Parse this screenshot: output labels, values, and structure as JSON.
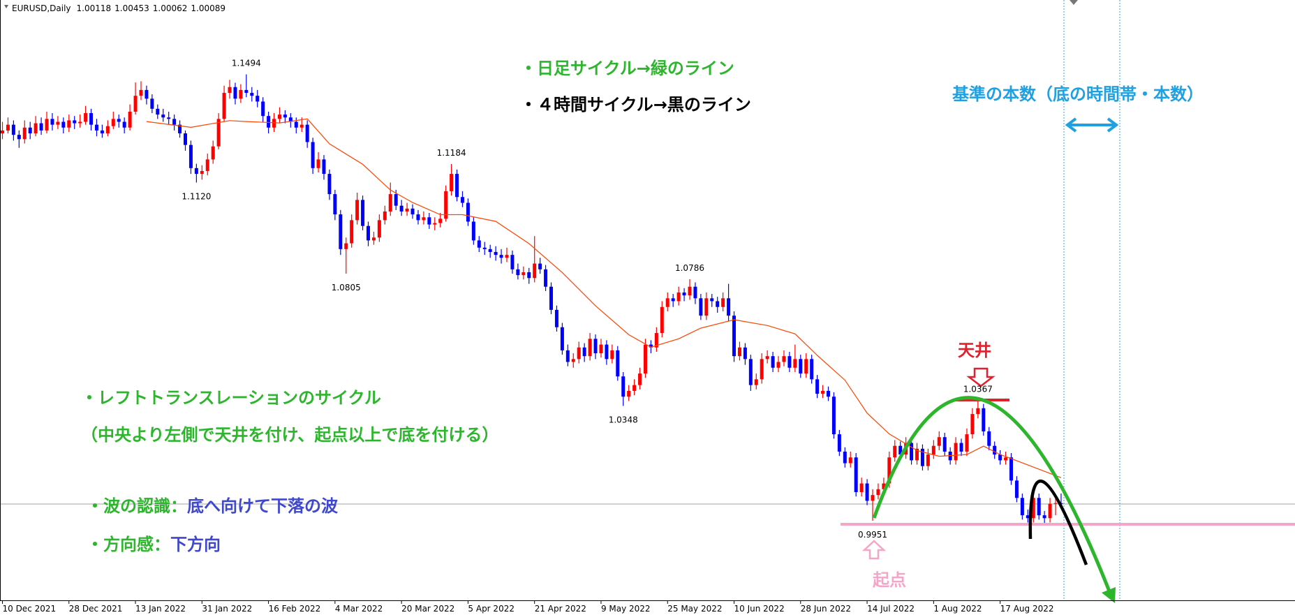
{
  "header": {
    "symbol": "EURUSD,Daily",
    "ohlc": [
      1.00118,
      1.00453,
      1.00062,
      1.00089
    ]
  },
  "notes": {
    "daily_cycle": "・日足サイクル→緑のライン",
    "h4_cycle": "・４時間サイクル→黒のライン",
    "reference": "基準の本数（底の時間帯・本数）",
    "left_translation": "・レフトトランスレーションのサイクル",
    "left_translation_note": "（中央より左側で天井を付け、起点以上で底を付ける）",
    "wave_label": "・波の認識：",
    "wave_value": "底へ向けて下落の波",
    "direction_label": "・方向感：",
    "direction_value": "下方向",
    "top": "天井",
    "origin": "起点"
  },
  "chart_data": {
    "type": "candlestick",
    "up_color": "#ff0000",
    "down_color": "#0000ff",
    "xlim": [
      -0.44,
      233.2
    ],
    "ylim": [
      0.9676,
      1.1751
    ],
    "xticks": [
      {
        "value": 0,
        "label": "10 Dec 2021"
      },
      {
        "value": 12,
        "label": "28 Dec 2021"
      },
      {
        "value": 24,
        "label": "13 Jan 2022"
      },
      {
        "value": 36,
        "label": "31 Jan 2022"
      },
      {
        "value": 48,
        "label": "16 Feb 2022"
      },
      {
        "value": 60,
        "label": "4 Mar 2022"
      },
      {
        "value": 72,
        "label": "20 Mar 2022"
      },
      {
        "value": 84,
        "label": "5 Apr 2022"
      },
      {
        "value": 96,
        "label": "21 Apr 2022"
      },
      {
        "value": 108,
        "label": "9 May 2022"
      },
      {
        "value": 120,
        "label": "25 May 2022"
      },
      {
        "value": 132,
        "label": "10 Jun 2022"
      },
      {
        "value": 144,
        "label": "28 Jun 2022"
      },
      {
        "value": 156,
        "label": "14 Jul 2022"
      },
      {
        "value": 168,
        "label": "1 Aug 2022"
      },
      {
        "value": 180,
        "label": "17 Aug 2022"
      }
    ],
    "ohlc": [
      [
        1.129,
        1.133,
        1.127,
        1.13
      ],
      [
        1.13,
        1.1345,
        1.129,
        1.132
      ],
      [
        1.132,
        1.1335,
        1.1265,
        1.1285
      ],
      [
        1.1285,
        1.13,
        1.124,
        1.127
      ],
      [
        1.127,
        1.1335,
        1.1255,
        1.131
      ],
      [
        1.131,
        1.133,
        1.127,
        1.129
      ],
      [
        1.129,
        1.135,
        1.128,
        1.1325
      ],
      [
        1.1325,
        1.1345,
        1.1285,
        1.13
      ],
      [
        1.13,
        1.1365,
        1.129,
        1.134
      ],
      [
        1.134,
        1.136,
        1.13,
        1.132
      ],
      [
        1.132,
        1.135,
        1.1305,
        1.133
      ],
      [
        1.133,
        1.1345,
        1.129,
        1.131
      ],
      [
        1.131,
        1.1355,
        1.1295,
        1.1335
      ],
      [
        1.1335,
        1.135,
        1.1305,
        1.1325
      ],
      [
        1.1325,
        1.1355,
        1.131,
        1.133
      ],
      [
        1.133,
        1.1385,
        1.132,
        1.136
      ],
      [
        1.136,
        1.1375,
        1.13,
        1.132
      ],
      [
        1.132,
        1.134,
        1.128,
        1.13
      ],
      [
        1.13,
        1.132,
        1.1275,
        1.129
      ],
      [
        1.129,
        1.1335,
        1.128,
        1.1315
      ],
      [
        1.1315,
        1.1365,
        1.1305,
        1.134
      ],
      [
        1.134,
        1.1355,
        1.131,
        1.133
      ],
      [
        1.133,
        1.1345,
        1.129,
        1.131
      ],
      [
        1.131,
        1.139,
        1.13,
        1.1365
      ],
      [
        1.1365,
        1.1466,
        1.1355,
        1.142
      ],
      [
        1.142,
        1.147,
        1.1405,
        1.144
      ],
      [
        1.144,
        1.1455,
        1.139,
        1.141
      ],
      [
        1.141,
        1.1425,
        1.136,
        1.1375
      ],
      [
        1.1375,
        1.139,
        1.134,
        1.1355
      ],
      [
        1.1355,
        1.1375,
        1.133,
        1.1345
      ],
      [
        1.1345,
        1.1365,
        1.132,
        1.134
      ],
      [
        1.134,
        1.1355,
        1.13,
        1.132
      ],
      [
        1.132,
        1.1335,
        1.1275,
        1.129
      ],
      [
        1.129,
        1.13,
        1.123,
        1.125
      ],
      [
        1.125,
        1.1265,
        1.115,
        1.117
      ],
      [
        1.117,
        1.1185,
        1.112,
        1.115
      ],
      [
        1.115,
        1.118,
        1.113,
        1.116
      ],
      [
        1.116,
        1.122,
        1.1145,
        1.12
      ],
      [
        1.12,
        1.1265,
        1.1185,
        1.1245
      ],
      [
        1.1245,
        1.136,
        1.1235,
        1.134
      ],
      [
        1.134,
        1.1455,
        1.133,
        1.143
      ],
      [
        1.143,
        1.1475,
        1.141,
        1.145
      ],
      [
        1.145,
        1.1465,
        1.139,
        1.141
      ],
      [
        1.141,
        1.146,
        1.1395,
        1.144
      ],
      [
        1.144,
        1.1494,
        1.1415,
        1.143
      ],
      [
        1.143,
        1.145,
        1.14,
        1.142
      ],
      [
        1.142,
        1.144,
        1.138,
        1.14
      ],
      [
        1.14,
        1.1415,
        1.133,
        1.135
      ],
      [
        1.135,
        1.1365,
        1.129,
        1.131
      ],
      [
        1.131,
        1.136,
        1.1295,
        1.134
      ],
      [
        1.134,
        1.138,
        1.1325,
        1.1355
      ],
      [
        1.1355,
        1.137,
        1.1325,
        1.1345
      ],
      [
        1.1345,
        1.136,
        1.131,
        1.133
      ],
      [
        1.133,
        1.1345,
        1.129,
        1.131
      ],
      [
        1.131,
        1.1345,
        1.1295,
        1.132
      ],
      [
        1.132,
        1.1335,
        1.124,
        1.126
      ],
      [
        1.126,
        1.1275,
        1.115,
        1.117
      ],
      [
        1.117,
        1.1225,
        1.1155,
        1.12
      ],
      [
        1.12,
        1.1215,
        1.113,
        1.115
      ],
      [
        1.115,
        1.1165,
        1.106,
        1.108
      ],
      [
        1.108,
        1.1095,
        1.099,
        1.101
      ],
      [
        1.101,
        1.1025,
        1.087,
        1.089
      ],
      [
        1.089,
        1.093,
        1.0805,
        1.091
      ],
      [
        1.091,
        1.101,
        1.0895,
        1.099
      ],
      [
        1.099,
        1.1085,
        1.0975,
        1.106
      ],
      [
        1.106,
        1.1075,
        1.0955,
        1.097
      ],
      [
        1.097,
        1.0985,
        1.09,
        1.092
      ],
      [
        1.092,
        1.095,
        1.0905,
        1.093
      ],
      [
        1.093,
        1.101,
        1.0915,
        1.099
      ],
      [
        1.099,
        1.104,
        1.0975,
        1.102
      ],
      [
        1.102,
        1.112,
        1.1005,
        1.108
      ],
      [
        1.108,
        1.1095,
        1.1025,
        1.104
      ],
      [
        1.104,
        1.106,
        1.1005,
        1.102
      ],
      [
        1.102,
        1.105,
        1.1005,
        1.103
      ],
      [
        1.103,
        1.1045,
        1.0995,
        1.101
      ],
      [
        1.101,
        1.1025,
        1.0975,
        1.099
      ],
      [
        1.099,
        1.102,
        1.0975,
        1.1
      ],
      [
        1.1,
        1.1015,
        1.096,
        1.0975
      ],
      [
        1.0975,
        1.1,
        1.0955,
        1.098
      ],
      [
        1.098,
        1.1015,
        1.0965,
        1.0995
      ],
      [
        1.0995,
        1.111,
        1.0985,
        1.109
      ],
      [
        1.109,
        1.1184,
        1.1075,
        1.115
      ],
      [
        1.115,
        1.1165,
        1.1055,
        1.107
      ],
      [
        1.107,
        1.109,
        1.1035,
        1.105
      ],
      [
        1.105,
        1.1065,
        1.097,
        1.0985
      ],
      [
        1.0985,
        1.1,
        1.0905,
        1.092
      ],
      [
        1.092,
        1.0935,
        1.088,
        1.0895
      ],
      [
        1.0895,
        1.0915,
        1.087,
        1.089
      ],
      [
        1.089,
        1.0905,
        1.086,
        1.088
      ],
      [
        1.088,
        1.09,
        1.085,
        1.087
      ],
      [
        1.087,
        1.089,
        1.084,
        1.086
      ],
      [
        1.086,
        1.0895,
        1.0845,
        1.087
      ],
      [
        1.087,
        1.0885,
        1.0805,
        1.082
      ],
      [
        1.082,
        1.084,
        1.0785,
        1.08
      ],
      [
        1.08,
        1.083,
        1.0785,
        1.081
      ],
      [
        1.081,
        1.0825,
        1.077,
        1.079
      ],
      [
        1.079,
        1.0935,
        1.0775,
        1.084
      ],
      [
        1.084,
        1.086,
        1.0805,
        1.082
      ],
      [
        1.082,
        1.0835,
        1.0745,
        1.076
      ],
      [
        1.076,
        1.0775,
        1.0665,
        1.068
      ],
      [
        1.068,
        1.0695,
        1.0605,
        1.062
      ],
      [
        1.062,
        1.0635,
        1.0525,
        1.054
      ],
      [
        1.054,
        1.056,
        1.0485,
        1.05
      ],
      [
        1.05,
        1.053,
        1.048,
        1.051
      ],
      [
        1.051,
        1.057,
        1.0495,
        1.055
      ],
      [
        1.055,
        1.0565,
        1.05,
        1.052
      ],
      [
        1.052,
        1.06,
        1.0505,
        1.058
      ],
      [
        1.058,
        1.0595,
        1.051,
        1.053
      ],
      [
        1.053,
        1.058,
        1.0515,
        1.056
      ],
      [
        1.056,
        1.0575,
        1.049,
        1.051
      ],
      [
        1.051,
        1.056,
        1.0495,
        1.054
      ],
      [
        1.054,
        1.0555,
        1.0435,
        1.045
      ],
      [
        1.045,
        1.0465,
        1.0348,
        1.038
      ],
      [
        1.038,
        1.042,
        1.0365,
        1.04
      ],
      [
        1.04,
        1.044,
        1.0385,
        1.042
      ],
      [
        1.042,
        1.048,
        1.0405,
        1.046
      ],
      [
        1.046,
        1.058,
        1.0445,
        1.056
      ],
      [
        1.056,
        1.0575,
        1.053,
        1.055
      ],
      [
        1.055,
        1.062,
        1.0535,
        1.06
      ],
      [
        1.06,
        1.071,
        1.0585,
        1.069
      ],
      [
        1.069,
        1.074,
        1.0675,
        1.072
      ],
      [
        1.072,
        1.0735,
        1.069,
        1.071
      ],
      [
        1.071,
        1.076,
        1.0695,
        1.074
      ],
      [
        1.074,
        1.0755,
        1.071,
        1.073
      ],
      [
        1.073,
        1.0786,
        1.0715,
        1.076
      ],
      [
        1.076,
        1.0775,
        1.07,
        1.072
      ],
      [
        1.072,
        1.0735,
        1.0645,
        1.066
      ],
      [
        1.066,
        1.074,
        1.0645,
        1.072
      ],
      [
        1.072,
        1.0735,
        1.069,
        1.071
      ],
      [
        1.071,
        1.0725,
        1.067,
        1.069
      ],
      [
        1.069,
        1.074,
        1.0675,
        1.072
      ],
      [
        1.072,
        1.077,
        1.064,
        1.066
      ],
      [
        1.066,
        1.0675,
        1.05,
        1.052
      ],
      [
        1.052,
        1.057,
        1.0505,
        1.055
      ],
      [
        1.055,
        1.0565,
        1.049,
        1.051
      ],
      [
        1.051,
        1.0525,
        1.04,
        1.042
      ],
      [
        1.042,
        1.046,
        1.0405,
        1.044
      ],
      [
        1.044,
        1.053,
        1.0425,
        1.051
      ],
      [
        1.051,
        1.054,
        1.0495,
        1.052
      ],
      [
        1.052,
        1.0535,
        1.0465,
        1.048
      ],
      [
        1.048,
        1.052,
        1.0465,
        1.05
      ],
      [
        1.05,
        1.054,
        1.0485,
        1.052
      ],
      [
        1.052,
        1.0535,
        1.0465,
        1.048
      ],
      [
        1.048,
        1.056,
        1.0465,
        1.051
      ],
      [
        1.051,
        1.0525,
        1.0445,
        1.046
      ],
      [
        1.046,
        1.053,
        1.0445,
        1.051
      ],
      [
        1.051,
        1.0525,
        1.0425,
        1.044
      ],
      [
        1.044,
        1.0455,
        1.0375,
        1.039
      ],
      [
        1.039,
        1.042,
        1.0375,
        1.04
      ],
      [
        1.04,
        1.0415,
        1.0365,
        1.038
      ],
      [
        1.038,
        1.0395,
        1.0235,
        1.025
      ],
      [
        1.025,
        1.0265,
        1.0175,
        1.019
      ],
      [
        1.019,
        1.0205,
        1.0135,
        1.015
      ],
      [
        1.015,
        1.019,
        1.0135,
        1.017
      ],
      [
        1.017,
        1.0185,
        1.0035,
        1.005
      ],
      [
        1.005,
        1.01,
        1.0035,
        1.008
      ],
      [
        1.008,
        1.0095,
        1.0005,
        1.002
      ],
      [
        1.002,
        1.006,
        0.9951,
        1.004
      ],
      [
        1.004,
        1.008,
        1.0025,
        1.006
      ],
      [
        1.006,
        1.01,
        1.0045,
        1.008
      ],
      [
        1.008,
        1.019,
        1.0065,
        1.017
      ],
      [
        1.017,
        1.023,
        1.0155,
        1.021
      ],
      [
        1.021,
        1.0225,
        1.0165,
        1.018
      ],
      [
        1.018,
        1.024,
        1.0165,
        1.022
      ],
      [
        1.022,
        1.0235,
        1.0145,
        1.016
      ],
      [
        1.016,
        1.022,
        1.0145,
        1.02
      ],
      [
        1.02,
        1.0215,
        1.0125,
        1.014
      ],
      [
        1.014,
        1.02,
        1.0125,
        1.018
      ],
      [
        1.018,
        1.023,
        1.0165,
        1.021
      ],
      [
        1.021,
        1.026,
        1.0195,
        1.024
      ],
      [
        1.024,
        1.0255,
        1.0175,
        1.019
      ],
      [
        1.019,
        1.0205,
        1.0145,
        1.016
      ],
      [
        1.016,
        1.024,
        1.0145,
        1.022
      ],
      [
        1.022,
        1.0235,
        1.0175,
        1.019
      ],
      [
        1.019,
        1.027,
        1.0175,
        1.025
      ],
      [
        1.025,
        1.034,
        1.0235,
        1.032
      ],
      [
        1.032,
        1.0367,
        1.0305,
        1.034
      ],
      [
        1.034,
        1.0355,
        1.0245,
        1.026
      ],
      [
        1.026,
        1.0275,
        1.0195,
        1.021
      ],
      [
        1.021,
        1.0225,
        1.0165,
        1.018
      ],
      [
        1.018,
        1.0195,
        1.0145,
        1.016
      ],
      [
        1.016,
        1.019,
        1.0145,
        1.017
      ],
      [
        1.017,
        1.0185,
        1.0075,
        1.009
      ],
      [
        1.009,
        1.0105,
        1.0015,
        1.003
      ],
      [
        1.003,
        1.0045,
        0.9955,
        0.997
      ],
      [
        0.997,
        0.999,
        0.9945,
        0.996
      ],
      [
        0.996,
        1.005,
        0.9945,
        1.003
      ],
      [
        1.003,
        1.0045,
        0.9955,
        0.997
      ],
      [
        0.997,
        0.9985,
        0.9935,
        0.996
      ],
      [
        0.996,
        1.003,
        0.9945,
        1.001
      ],
      [
        1.001,
        1.003,
        0.997,
        1.0012
      ],
      [
        1.00118,
        1.00453,
        1.00062,
        1.00089
      ]
    ],
    "ma": {
      "color": "#ff4500",
      "x": [
        26,
        34,
        41,
        44,
        50,
        55,
        59,
        65,
        70,
        74,
        79,
        83,
        89,
        95,
        101,
        107,
        113,
        117,
        122,
        126,
        132,
        138,
        143,
        147,
        152,
        156,
        160,
        165,
        169,
        174,
        177,
        180,
        184,
        191
      ],
      "values": [
        1.1331,
        1.1311,
        1.1334,
        1.1331,
        1.1326,
        1.134,
        1.1254,
        1.1183,
        1.1094,
        1.1051,
        1.1009,
        1.1009,
        1.0986,
        1.0909,
        1.0809,
        1.0694,
        1.0594,
        1.0551,
        1.058,
        1.0617,
        1.0646,
        1.0626,
        1.0597,
        1.0523,
        1.0437,
        1.0323,
        1.0251,
        1.0194,
        1.0174,
        1.018,
        1.0209,
        1.018,
        1.0151,
        1.01
      ]
    },
    "price_labels": [
      {
        "x": 44,
        "value": 1.1494,
        "pos": "above"
      },
      {
        "x": 35,
        "value": 1.112,
        "label": "1.1120",
        "pos": "below"
      },
      {
        "x": 62,
        "value": 1.0805,
        "pos": "below"
      },
      {
        "x": 81,
        "value": 1.1184,
        "pos": "above"
      },
      {
        "x": 112,
        "value": 1.0348,
        "pos": "below"
      },
      {
        "x": 124,
        "value": 1.0786,
        "pos": "above"
      },
      {
        "x": 157,
        "value": 0.9951,
        "pos": "below"
      },
      {
        "x": 176,
        "value": 1.0367,
        "pos": "above"
      }
    ]
  }
}
